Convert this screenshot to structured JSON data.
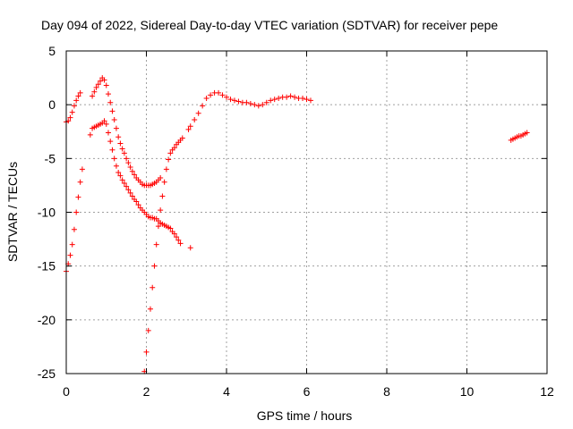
{
  "chart_data": {
    "type": "scatter",
    "title": "Day 094 of 2022, Sidereal Day-to-day VTEC variation (SDTVAR) for receiver pepe",
    "xlabel": "GPS time / hours",
    "ylabel": "SDTVAR / TECUs",
    "xlim": [
      0,
      12
    ],
    "ylim": [
      -25,
      5
    ],
    "xticks": [
      "0",
      "2",
      "4",
      "6",
      "8",
      "10",
      "12"
    ],
    "yticks": [
      "5",
      "0",
      "-5",
      "-10",
      "-15",
      "-20",
      "-25"
    ],
    "grid": true,
    "legend": "none",
    "marker": "+",
    "color": "#ff0000",
    "series": [
      {
        "x": [
          0.0,
          0.05,
          0.1,
          0.15,
          0.2,
          0.25,
          0.3,
          0.35,
          0.4,
          0.45,
          0.5,
          0.55,
          0.6,
          0.65,
          0.7,
          0.75,
          0.8,
          0.85,
          0.9,
          0.95,
          1.0,
          1.05,
          1.1,
          1.15,
          1.2,
          1.25,
          1.3,
          1.35,
          1.4,
          1.45,
          1.5,
          1.55,
          1.6,
          1.65,
          1.7,
          1.75,
          1.8,
          1.85,
          1.9,
          1.95,
          2.0,
          2.05,
          2.1,
          2.15,
          2.2,
          2.25,
          2.3,
          2.35
        ],
        "y": [
          -1.6,
          -1.5,
          -1.2,
          -0.7,
          -0.1,
          0.4,
          0.8,
          1.1,
          null,
          null,
          null,
          null,
          null,
          0.8,
          1.2,
          1.6,
          1.9,
          2.2,
          2.5,
          2.3,
          1.8,
          1.0,
          0.2,
          -0.6,
          -1.4,
          -2.2,
          -3.0,
          -3.6,
          -4.1,
          -4.5,
          -5.0,
          -5.4,
          -5.8,
          -6.2,
          -6.5,
          -6.8,
          -7.0,
          -7.2,
          -7.4,
          -7.5,
          -7.5,
          -7.5,
          -7.5,
          -7.4,
          -7.3,
          -7.2,
          -7.0,
          -6.8
        ]
      },
      {
        "x": [
          0.6,
          0.65,
          0.7,
          0.75,
          0.8,
          0.85,
          0.9,
          0.95,
          1.0,
          1.05,
          1.1,
          1.15,
          1.2,
          1.25,
          1.3,
          1.35,
          1.4,
          1.45,
          1.5,
          1.55,
          1.6,
          1.65,
          1.7,
          1.75,
          1.8,
          1.85,
          1.9,
          1.95,
          2.0,
          2.05,
          2.1,
          2.15,
          2.2,
          2.25,
          2.3,
          2.35,
          2.4,
          2.45,
          2.5,
          2.55,
          2.6,
          2.65,
          2.7,
          2.75,
          2.8,
          2.85,
          3.1
        ],
        "y": [
          -2.8,
          -2.2,
          -2.1,
          -2.0,
          -1.9,
          -1.8,
          -1.7,
          -1.5,
          -1.8,
          -2.6,
          -3.4,
          -4.2,
          -5.0,
          -5.7,
          -6.3,
          -6.6,
          -7.0,
          -7.3,
          -7.6,
          -7.9,
          -8.2,
          -8.5,
          -8.8,
          -9.0,
          -9.3,
          -9.6,
          -9.8,
          -10.0,
          -10.2,
          -10.4,
          -10.5,
          -10.5,
          -10.6,
          -10.6,
          -10.8,
          -11.0,
          -11.1,
          -11.2,
          -11.3,
          -11.4,
          -11.5,
          -11.8,
          -12.0,
          -12.3,
          -12.6,
          -12.9,
          -13.3
        ]
      },
      {
        "x": [
          0.0,
          0.05,
          0.1,
          0.15,
          0.2,
          0.25,
          0.3,
          0.35,
          0.4
        ],
        "y": [
          -15.5,
          -14.8,
          -14.0,
          -13.0,
          -11.6,
          -10.0,
          -8.6,
          -7.2,
          -6.0
        ]
      },
      {
        "x": [
          1.95,
          2.0,
          2.05,
          2.1,
          2.15,
          2.2,
          2.25,
          2.3,
          2.35,
          2.4,
          2.45,
          2.5,
          2.55,
          2.6,
          2.65,
          2.7,
          2.75,
          2.8,
          2.85,
          2.9
        ],
        "y": [
          -24.8,
          -23.0,
          -21.0,
          -19.0,
          -17.0,
          -15.0,
          -13.0,
          -11.3,
          -9.8,
          -8.5,
          -7.2,
          -6.0,
          -5.1,
          -4.5,
          -4.2,
          -4.0,
          -3.7,
          -3.5,
          -3.3,
          -3.1
        ]
      },
      {
        "x": [
          3.05,
          3.1,
          3.2,
          3.3,
          3.4,
          3.5,
          3.6,
          3.7,
          3.8,
          3.9,
          4.0,
          4.1,
          4.2,
          4.3,
          4.4,
          4.5,
          4.6,
          4.7,
          4.8,
          4.9,
          5.0,
          5.1,
          5.2,
          5.3,
          5.4,
          5.5,
          5.6,
          5.7,
          5.8,
          5.9,
          6.0,
          6.1
        ],
        "y": [
          -2.3,
          -2.0,
          -1.4,
          -0.8,
          -0.1,
          0.6,
          0.9,
          1.1,
          1.1,
          0.9,
          0.7,
          0.5,
          0.4,
          0.3,
          0.2,
          0.2,
          0.1,
          0.0,
          -0.1,
          0.0,
          0.2,
          0.4,
          0.5,
          0.6,
          0.7,
          0.7,
          0.8,
          0.7,
          0.6,
          0.6,
          0.5,
          0.4
        ]
      },
      {
        "x": [
          11.1,
          11.15,
          11.2,
          11.25,
          11.3,
          11.35,
          11.4,
          11.45,
          11.5
        ],
        "y": [
          -3.3,
          -3.2,
          -3.1,
          -3.0,
          -2.9,
          -2.9,
          -2.8,
          -2.7,
          -2.6
        ]
      }
    ]
  }
}
